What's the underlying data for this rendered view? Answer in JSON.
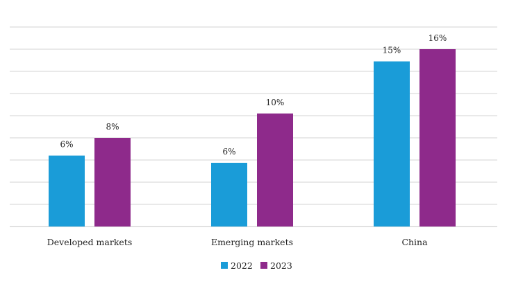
{
  "chart_data": {
    "type": "bar",
    "title": "",
    "xlabel": "",
    "ylabel": "",
    "ylim": [
      0,
      18
    ],
    "grid_step": 2,
    "grid": true,
    "legend_position": "bottom-center",
    "categories": [
      "Developed markets",
      "Emerging markets",
      "China"
    ],
    "series": [
      {
        "name": "2022",
        "color": "#1a9cd8",
        "values": [
          6.4,
          5.75,
          14.9
        ],
        "labels": [
          "6%",
          "6%",
          "15%"
        ]
      },
      {
        "name": "2023",
        "color": "#8e2a8b",
        "values": [
          8,
          10.2,
          16
        ],
        "labels": [
          "8%",
          "10%",
          "16%"
        ]
      }
    ]
  }
}
